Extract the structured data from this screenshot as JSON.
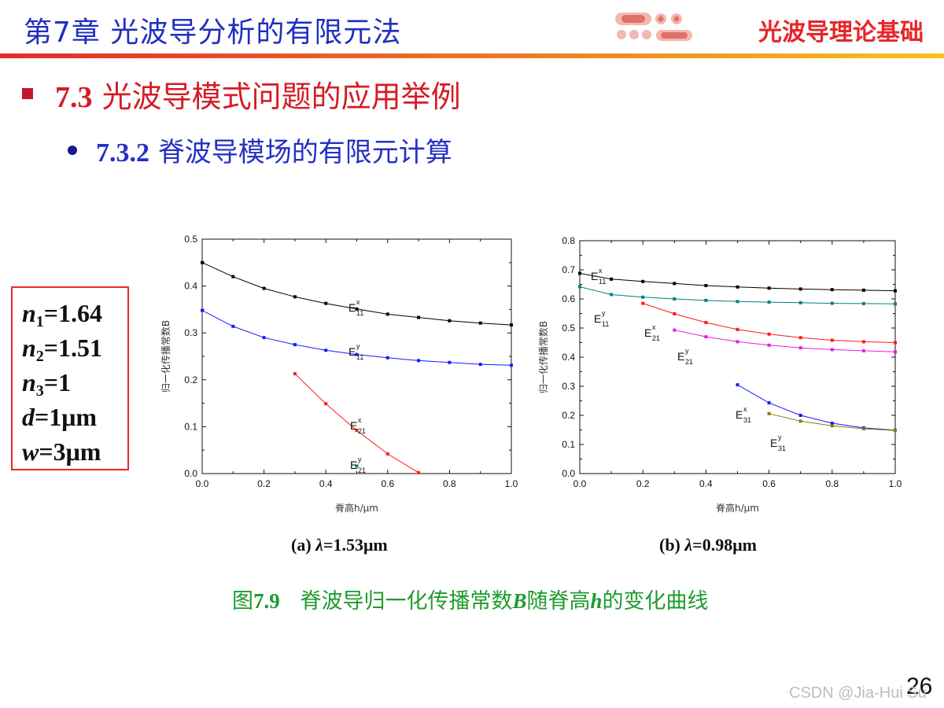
{
  "header": {
    "chapter_title": "第7章 光波导分析的有限元法",
    "book_title": "光波导理论基础",
    "colors": {
      "chapter": "#1f2fbf",
      "book": "#e6262a",
      "rule_start": "#e5292b",
      "rule_end": "#f6c21a"
    }
  },
  "section": {
    "number": "7.3",
    "title": "光波导模式问题的应用举例"
  },
  "subsection": {
    "number": "7.3.2",
    "title": "脊波导模场的有限元计算"
  },
  "params": [
    {
      "sym": "n",
      "sub": "1",
      "rest": "=1.64"
    },
    {
      "sym": "n",
      "sub": "2",
      "rest": "=1.51"
    },
    {
      "sym": "n",
      "sub": "3",
      "rest": "=1"
    },
    {
      "sym": "d",
      "sub": "",
      "rest": "=1μm"
    },
    {
      "sym": "w",
      "sub": "",
      "rest": "=3μm"
    }
  ],
  "captions": {
    "a": {
      "prefix": "(a) ",
      "lambda": "λ",
      "value": "=1.53μm"
    },
    "b": {
      "prefix": "(b) ",
      "lambda": "λ",
      "value": "=0.98μm"
    },
    "figure": {
      "p1": "图",
      "num": "7.9",
      "p2": "   脊波导归一化传播常数",
      "B": "B",
      "p3": "随脊高",
      "h": "h",
      "p4": "的变化曲线"
    }
  },
  "page_number": "26",
  "watermark": "CSDN @Jia-Hui Su",
  "chart_data": [
    {
      "type": "line",
      "xlabel": "脊高h/μm",
      "ylabel": "归一化传播常数B",
      "xlim": [
        0,
        1.0
      ],
      "ylim": [
        0,
        0.5
      ],
      "xticks": [
        "0.0",
        "0.2",
        "0.4",
        "0.6",
        "0.8",
        "1.0"
      ],
      "yticks": [
        "0.0",
        "0.1",
        "0.2",
        "0.3",
        "0.4",
        "0.5"
      ],
      "grid": false,
      "series": [
        {
          "name": "E11x",
          "base": "E",
          "sup": "x",
          "sub": "11",
          "color": "#000000",
          "x": [
            0.0,
            0.1,
            0.2,
            0.3,
            0.4,
            0.5,
            0.6,
            0.7,
            0.8,
            0.9,
            1.0
          ],
          "y": [
            0.45,
            0.42,
            0.395,
            0.377,
            0.363,
            0.351,
            0.34,
            0.333,
            0.326,
            0.321,
            0.317
          ]
        },
        {
          "name": "E11y",
          "base": "E",
          "sup": "y",
          "sub": "11",
          "color": "#1a1aff",
          "x": [
            0.0,
            0.1,
            0.2,
            0.3,
            0.4,
            0.5,
            0.6,
            0.7,
            0.8,
            0.9,
            1.0
          ],
          "y": [
            0.348,
            0.314,
            0.29,
            0.275,
            0.263,
            0.254,
            0.247,
            0.241,
            0.237,
            0.233,
            0.231
          ]
        },
        {
          "name": "E21x",
          "base": "E",
          "sup": "x",
          "sub": "21",
          "color": "#ff1a1a",
          "x": [
            0.3,
            0.4,
            0.5,
            0.6,
            0.7
          ],
          "y": [
            0.213,
            0.149,
            0.092,
            0.042,
            0.002
          ]
        },
        {
          "name": "E21y",
          "base": "E",
          "sup": "y",
          "sub": "21",
          "color": "#008080",
          "x": [
            0.5
          ],
          "y": [
            0.016
          ]
        }
      ]
    },
    {
      "type": "line",
      "xlabel": "脊高h/μm",
      "ylabel": "归一化传播常数B",
      "xlim": [
        0,
        1.0
      ],
      "ylim": [
        0,
        0.8
      ],
      "xticks": [
        "0.0",
        "0.2",
        "0.4",
        "0.6",
        "0.8",
        "1.0"
      ],
      "yticks": [
        "0.0",
        "0.1",
        "0.2",
        "0.3",
        "0.4",
        "0.5",
        "0.6",
        "0.7",
        "0.8"
      ],
      "grid": false,
      "series": [
        {
          "name": "E11x",
          "base": "E",
          "sup": "x",
          "sub": "11",
          "color": "#000000",
          "x": [
            0.0,
            0.1,
            0.2,
            0.3,
            0.4,
            0.5,
            0.6,
            0.7,
            0.8,
            0.9,
            1.0
          ],
          "y": [
            0.688,
            0.668,
            0.66,
            0.653,
            0.646,
            0.641,
            0.637,
            0.634,
            0.632,
            0.63,
            0.628
          ]
        },
        {
          "name": "E11y",
          "base": "E",
          "sup": "y",
          "sub": "11",
          "color": "#008080",
          "x": [
            0.0,
            0.1,
            0.2,
            0.3,
            0.4,
            0.5,
            0.6,
            0.7,
            0.8,
            0.9,
            1.0
          ],
          "y": [
            0.642,
            0.615,
            0.606,
            0.6,
            0.595,
            0.591,
            0.589,
            0.587,
            0.585,
            0.584,
            0.583
          ]
        },
        {
          "name": "E21x",
          "base": "E",
          "sup": "x",
          "sub": "21",
          "color": "#ff1a1a",
          "x": [
            0.2,
            0.3,
            0.4,
            0.5,
            0.6,
            0.7,
            0.8,
            0.9,
            1.0
          ],
          "y": [
            0.585,
            0.549,
            0.519,
            0.495,
            0.479,
            0.467,
            0.458,
            0.453,
            0.45
          ]
        },
        {
          "name": "E21y",
          "base": "E",
          "sup": "y",
          "sub": "21",
          "color": "#e020e0",
          "x": [
            0.3,
            0.4,
            0.5,
            0.6,
            0.7,
            0.8,
            0.9,
            1.0
          ],
          "y": [
            0.493,
            0.47,
            0.453,
            0.441,
            0.432,
            0.426,
            0.422,
            0.418
          ]
        },
        {
          "name": "E31x",
          "base": "E",
          "sup": "x",
          "sub": "31",
          "color": "#1a1aff",
          "x": [
            0.5,
            0.6,
            0.7,
            0.8,
            0.9,
            1.0
          ],
          "y": [
            0.305,
            0.243,
            0.2,
            0.173,
            0.157,
            0.149
          ]
        },
        {
          "name": "E31y",
          "base": "E",
          "sup": "y",
          "sub": "31",
          "color": "#808000",
          "x": [
            0.6,
            0.7,
            0.8,
            0.9,
            1.0
          ],
          "y": [
            0.206,
            0.18,
            0.164,
            0.154,
            0.148
          ]
        }
      ]
    }
  ]
}
